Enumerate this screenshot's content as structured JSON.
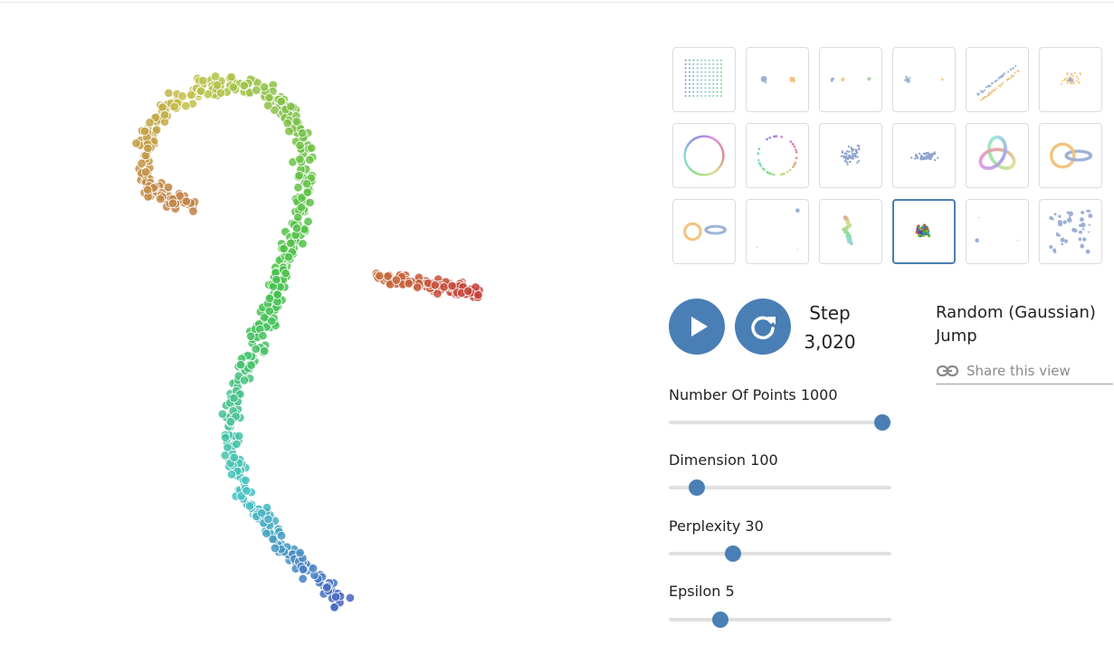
{
  "controls": {
    "play_icon": "play-icon",
    "reset_icon": "refresh-icon",
    "button_color": "#4a7fb5"
  },
  "step": {
    "label": "Step",
    "value": "3,020"
  },
  "dataset": {
    "line1": "Random (Gaussian)",
    "line2": "Jump"
  },
  "share": {
    "icon": "link-icon",
    "label": "Share this view"
  },
  "sliders": [
    {
      "name": "number-of-points",
      "label": "Number Of Points 1000",
      "fraction": 0.96
    },
    {
      "name": "dimension",
      "label": "Dimension 100",
      "fraction": 0.125
    },
    {
      "name": "perplexity",
      "label": "Perplexity 30",
      "fraction": 0.29
    },
    {
      "name": "epsilon",
      "label": "Epsilon 5",
      "fraction": 0.23
    }
  ],
  "thumbnails": [
    {
      "name": "grid",
      "selected": false
    },
    {
      "name": "two-clusters",
      "selected": false
    },
    {
      "name": "three-clusters",
      "selected": false
    },
    {
      "name": "two-different-size-clusters",
      "selected": false
    },
    {
      "name": "two-long-linear-clusters",
      "selected": false
    },
    {
      "name": "cluster-in-cluster",
      "selected": false
    },
    {
      "name": "circle-evenly-spaced",
      "selected": false
    },
    {
      "name": "circle-randomly-spaced",
      "selected": false
    },
    {
      "name": "gaussian-cloud",
      "selected": false
    },
    {
      "name": "ellipsoidal-gaussian-cloud",
      "selected": false
    },
    {
      "name": "trefoil-knot",
      "selected": false
    },
    {
      "name": "linked-rings",
      "selected": false
    },
    {
      "name": "unlinked-rings",
      "selected": false
    },
    {
      "name": "orthogonal-steps",
      "selected": false
    },
    {
      "name": "random-walk",
      "selected": false
    },
    {
      "name": "random-jump",
      "selected": true
    },
    {
      "name": "equally-spaced",
      "selected": false
    },
    {
      "name": "uniform-distribution",
      "selected": false
    }
  ]
}
